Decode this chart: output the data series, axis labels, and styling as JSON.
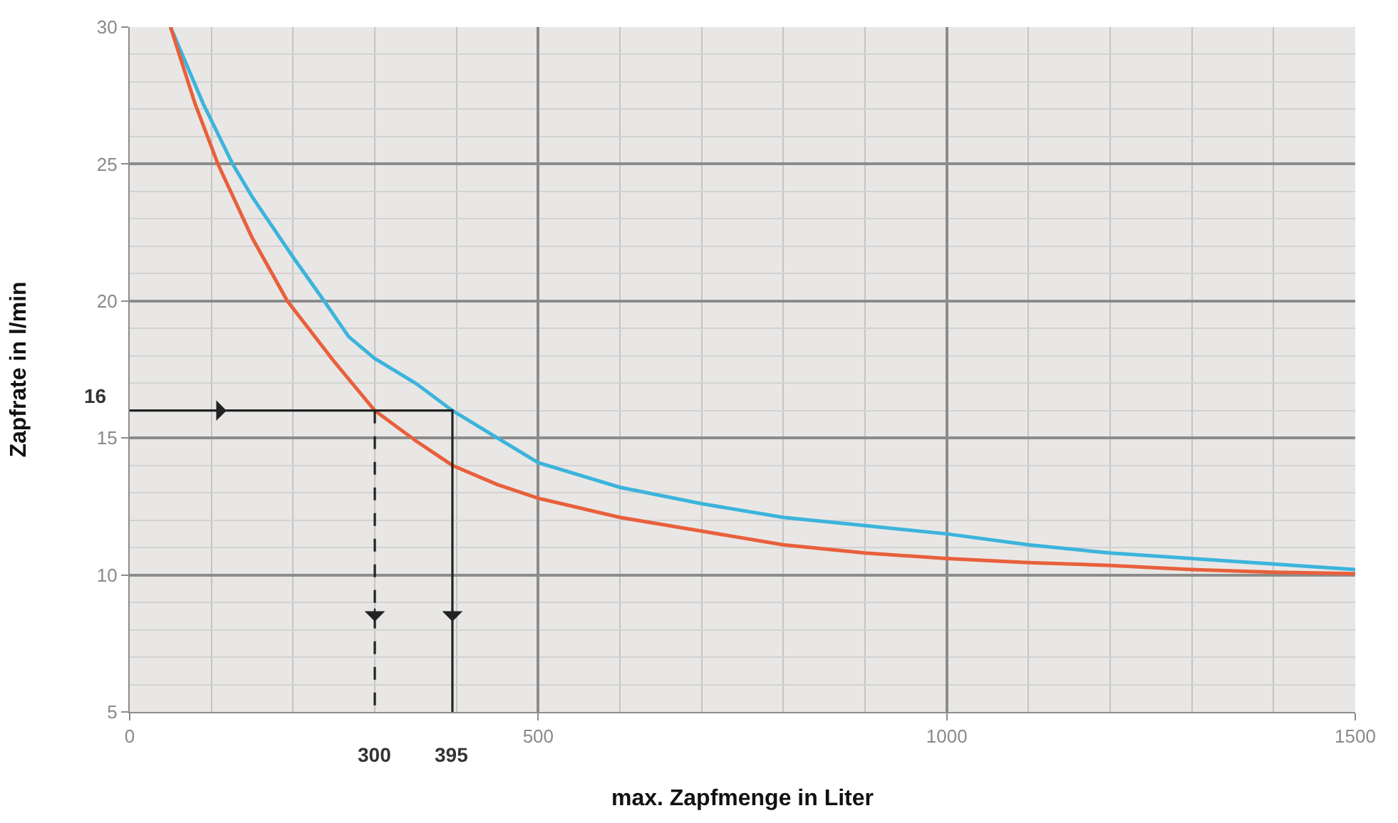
{
  "chart_data": {
    "type": "line",
    "xlabel": "max. Zapfmenge in Liter",
    "ylabel": "Zapfrate in l/min",
    "xlim": [
      0,
      1500
    ],
    "ylim": [
      5,
      30
    ],
    "xticks": [
      0,
      500,
      1000,
      1500
    ],
    "yticks": [
      5,
      10,
      15,
      20,
      25,
      30
    ],
    "grid": true,
    "marker": "none",
    "series": [
      {
        "color": "#3cb4dc",
        "x": [
          50,
          90,
          126,
          150,
          200,
          238,
          268,
          300,
          350,
          395,
          450,
          500,
          600,
          700,
          800,
          900,
          1000,
          1100,
          1200,
          1300,
          1400,
          1500
        ],
        "values": [
          30,
          27.2,
          25,
          23.8,
          21.6,
          20,
          18.7,
          17.9,
          17,
          16,
          15,
          14.1,
          13.2,
          12.6,
          12.1,
          11.8,
          11.5,
          11.1,
          10.8,
          10.6,
          10.4,
          10.2
        ]
      },
      {
        "color": "#e8603c",
        "x": [
          50,
          80,
          108,
          150,
          193,
          250,
          300,
          350,
          395,
          450,
          500,
          600,
          700,
          800,
          900,
          1000,
          1100,
          1200,
          1300,
          1400,
          1500
        ],
        "values": [
          30,
          27.2,
          25,
          22.3,
          20,
          17.8,
          16,
          14.9,
          14,
          13.3,
          12.8,
          12.1,
          11.6,
          11.1,
          10.8,
          10.6,
          10.45,
          10.35,
          10.2,
          10.1,
          10.05
        ]
      },
      {
        "color": "#222222",
        "line_style": "solid",
        "x": [
          0,
          395,
          395
        ],
        "values": [
          16,
          16,
          5
        ]
      },
      {
        "color": "#222222",
        "line_style": "dashed",
        "x": [
          300,
          300
        ],
        "values": [
          16,
          5
        ]
      }
    ],
    "annotations": [
      {
        "text": "16",
        "x": 0,
        "y": 16
      },
      {
        "text": "300",
        "x": 300,
        "y": 5
      },
      {
        "text": "395",
        "x": 395,
        "y": 5
      }
    ]
  }
}
